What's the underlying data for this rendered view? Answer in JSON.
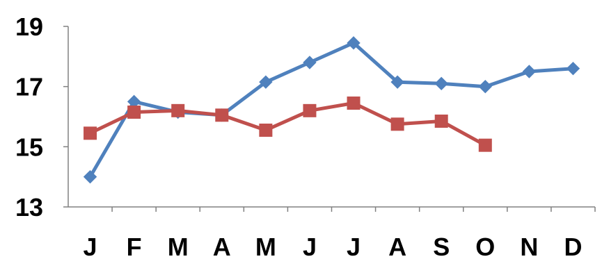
{
  "chart_data": {
    "type": "line",
    "categories": [
      "J",
      "F",
      "M",
      "A",
      "M",
      "J",
      "J",
      "A",
      "S",
      "O",
      "N",
      "D"
    ],
    "series": [
      {
        "color": "#4F81BD",
        "marker": "diamond",
        "values": [
          14.0,
          16.5,
          16.15,
          16.05,
          17.15,
          17.8,
          18.45,
          17.15,
          17.1,
          17.0,
          17.5,
          17.6
        ]
      },
      {
        "color": "#C0504D",
        "marker": "square",
        "values": [
          15.45,
          16.15,
          16.2,
          16.05,
          15.55,
          16.2,
          16.45,
          15.75,
          15.85,
          15.05,
          null,
          null
        ]
      }
    ],
    "ylim": [
      13,
      19
    ],
    "yticks": [
      "13",
      "15",
      "17",
      "19"
    ],
    "grid": false,
    "legend": "none",
    "title": "",
    "xlabel": "",
    "ylabel": ""
  }
}
